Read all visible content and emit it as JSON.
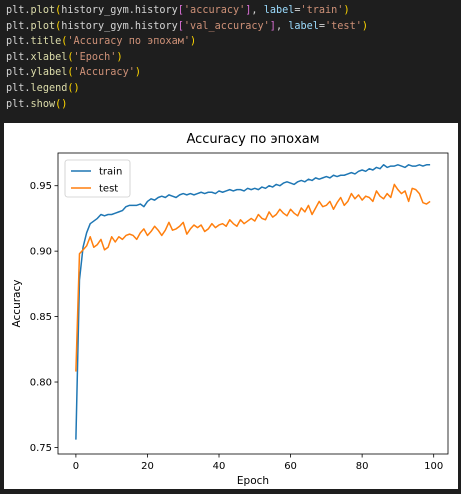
{
  "code": {
    "lines": [
      [
        [
          "plt",
          "tok-id"
        ],
        [
          ".",
          "tok-pun"
        ],
        [
          "plot",
          "tok-fn"
        ],
        [
          "(",
          "tok-brk"
        ],
        [
          "history_gym",
          "tok-id"
        ],
        [
          ".",
          "tok-pun"
        ],
        [
          "history",
          "tok-id"
        ],
        [
          "[",
          "tok-brk2"
        ],
        [
          "'accuracy'",
          "tok-str"
        ],
        [
          "]",
          "tok-brk2"
        ],
        [
          ", ",
          "tok-pun"
        ],
        [
          "label",
          "tok-kw"
        ],
        [
          "=",
          "tok-pun"
        ],
        [
          "'train'",
          "tok-str"
        ],
        [
          ")",
          "tok-brk"
        ]
      ],
      [
        [
          "plt",
          "tok-id"
        ],
        [
          ".",
          "tok-pun"
        ],
        [
          "plot",
          "tok-fn"
        ],
        [
          "(",
          "tok-brk"
        ],
        [
          "history_gym",
          "tok-id"
        ],
        [
          ".",
          "tok-pun"
        ],
        [
          "history",
          "tok-id"
        ],
        [
          "[",
          "tok-brk2"
        ],
        [
          "'val_accuracy'",
          "tok-str"
        ],
        [
          "]",
          "tok-brk2"
        ],
        [
          ", ",
          "tok-pun"
        ],
        [
          "label",
          "tok-kw"
        ],
        [
          "=",
          "tok-pun"
        ],
        [
          "'test'",
          "tok-str"
        ],
        [
          ")",
          "tok-brk"
        ]
      ],
      [
        [
          "plt",
          "tok-id"
        ],
        [
          ".",
          "tok-pun"
        ],
        [
          "title",
          "tok-fn"
        ],
        [
          "(",
          "tok-brk"
        ],
        [
          "'Accuracy по эпохам'",
          "tok-str"
        ],
        [
          ")",
          "tok-brk"
        ]
      ],
      [
        [
          "plt",
          "tok-id"
        ],
        [
          ".",
          "tok-pun"
        ],
        [
          "xlabel",
          "tok-fn"
        ],
        [
          "(",
          "tok-brk"
        ],
        [
          "'Epoch'",
          "tok-str"
        ],
        [
          ")",
          "tok-brk"
        ]
      ],
      [
        [
          "plt",
          "tok-id"
        ],
        [
          ".",
          "tok-pun"
        ],
        [
          "ylabel",
          "tok-fn"
        ],
        [
          "(",
          "tok-brk"
        ],
        [
          "'Accuracy'",
          "tok-str"
        ],
        [
          ")",
          "tok-brk"
        ]
      ],
      [
        [
          "plt",
          "tok-id"
        ],
        [
          ".",
          "tok-pun"
        ],
        [
          "legend",
          "tok-fn"
        ],
        [
          "(",
          "tok-brk"
        ],
        [
          ")",
          "tok-brk"
        ]
      ],
      [
        [
          "plt",
          "tok-id"
        ],
        [
          ".",
          "tok-pun"
        ],
        [
          "show",
          "tok-fn"
        ],
        [
          "(",
          "tok-brk"
        ],
        [
          ")",
          "tok-brk"
        ]
      ]
    ]
  },
  "colors": {
    "train": "#1f77b4",
    "test": "#ff7f0e",
    "axis": "#000000",
    "legend_border": "#cccccc"
  },
  "chart_data": {
    "type": "line",
    "title": "Accuracy по эпохам",
    "xlabel": "Epoch",
    "ylabel": "Accuracy",
    "xlim": [
      -5,
      104
    ],
    "ylim": [
      0.745,
      0.975
    ],
    "xticks": [
      0,
      20,
      40,
      60,
      80,
      100
    ],
    "yticks": [
      0.75,
      0.8,
      0.85,
      0.9,
      0.95
    ],
    "ytick_labels": [
      "0.75",
      "0.80",
      "0.85",
      "0.90",
      "0.95"
    ],
    "grid": false,
    "legend": "upper left",
    "x": [
      0,
      1,
      2,
      3,
      4,
      5,
      6,
      7,
      8,
      9,
      10,
      11,
      12,
      13,
      14,
      15,
      16,
      17,
      18,
      19,
      20,
      21,
      22,
      23,
      24,
      25,
      26,
      27,
      28,
      29,
      30,
      31,
      32,
      33,
      34,
      35,
      36,
      37,
      38,
      39,
      40,
      41,
      42,
      43,
      44,
      45,
      46,
      47,
      48,
      49,
      50,
      51,
      52,
      53,
      54,
      55,
      56,
      57,
      58,
      59,
      60,
      61,
      62,
      63,
      64,
      65,
      66,
      67,
      68,
      69,
      70,
      71,
      72,
      73,
      74,
      75,
      76,
      77,
      78,
      79,
      80,
      81,
      82,
      83,
      84,
      85,
      86,
      87,
      88,
      89,
      90,
      91,
      92,
      93,
      94,
      95,
      96,
      97,
      98,
      99
    ],
    "series": [
      {
        "name": "train",
        "values": [
          0.756,
          0.878,
          0.903,
          0.914,
          0.921,
          0.923,
          0.925,
          0.928,
          0.927,
          0.928,
          0.928,
          0.929,
          0.93,
          0.931,
          0.934,
          0.935,
          0.935,
          0.935,
          0.936,
          0.934,
          0.938,
          0.94,
          0.939,
          0.941,
          0.942,
          0.941,
          0.943,
          0.942,
          0.941,
          0.943,
          0.944,
          0.943,
          0.944,
          0.943,
          0.944,
          0.945,
          0.944,
          0.945,
          0.945,
          0.944,
          0.946,
          0.945,
          0.946,
          0.947,
          0.946,
          0.947,
          0.947,
          0.946,
          0.948,
          0.947,
          0.948,
          0.947,
          0.949,
          0.948,
          0.95,
          0.949,
          0.951,
          0.95,
          0.952,
          0.953,
          0.952,
          0.951,
          0.953,
          0.954,
          0.953,
          0.955,
          0.954,
          0.956,
          0.955,
          0.956,
          0.957,
          0.956,
          0.958,
          0.957,
          0.958,
          0.958,
          0.959,
          0.96,
          0.959,
          0.961,
          0.962,
          0.961,
          0.963,
          0.962,
          0.964,
          0.963,
          0.966,
          0.964,
          0.965,
          0.965,
          0.966,
          0.965,
          0.964,
          0.966,
          0.965,
          0.965,
          0.966,
          0.965,
          0.966,
          0.966
        ]
      },
      {
        "name": "test",
        "values": [
          0.808,
          0.898,
          0.901,
          0.904,
          0.911,
          0.903,
          0.905,
          0.909,
          0.901,
          0.903,
          0.911,
          0.907,
          0.911,
          0.909,
          0.912,
          0.913,
          0.912,
          0.909,
          0.914,
          0.917,
          0.912,
          0.915,
          0.919,
          0.916,
          0.912,
          0.916,
          0.922,
          0.916,
          0.917,
          0.919,
          0.922,
          0.913,
          0.917,
          0.92,
          0.918,
          0.92,
          0.915,
          0.917,
          0.921,
          0.918,
          0.92,
          0.921,
          0.919,
          0.924,
          0.921,
          0.919,
          0.924,
          0.921,
          0.923,
          0.925,
          0.923,
          0.928,
          0.925,
          0.924,
          0.93,
          0.926,
          0.928,
          0.932,
          0.929,
          0.927,
          0.932,
          0.929,
          0.927,
          0.933,
          0.93,
          0.935,
          0.928,
          0.933,
          0.938,
          0.934,
          0.935,
          0.938,
          0.932,
          0.937,
          0.941,
          0.935,
          0.938,
          0.944,
          0.94,
          0.943,
          0.939,
          0.942,
          0.941,
          0.938,
          0.946,
          0.942,
          0.94,
          0.944,
          0.941,
          0.951,
          0.947,
          0.944,
          0.946,
          0.938,
          0.948,
          0.947,
          0.944,
          0.937,
          0.936,
          0.938
        ]
      }
    ]
  }
}
